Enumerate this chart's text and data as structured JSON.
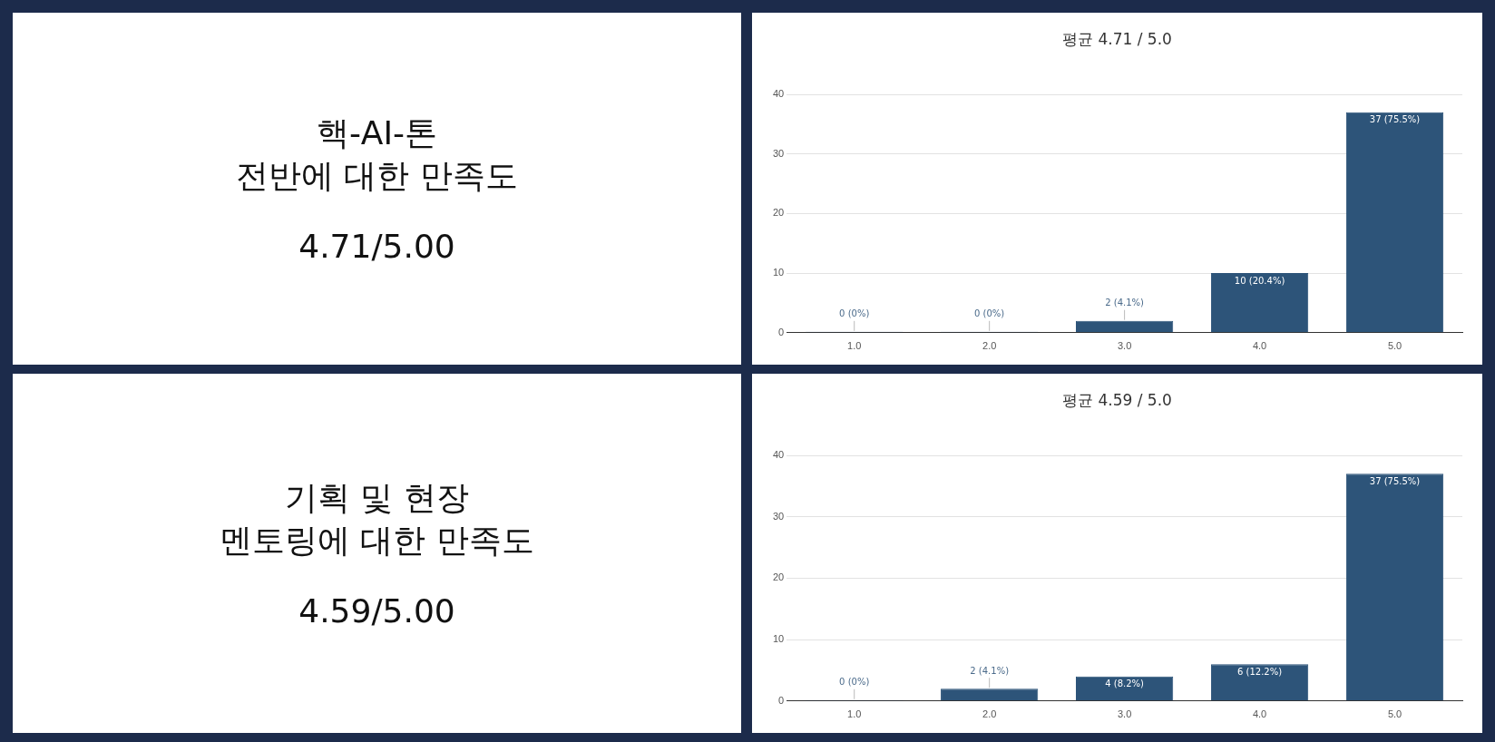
{
  "chart_data": [
    {
      "type": "other",
      "title": "핵-AI-톤\n전반에 대한 만족도",
      "subtitle": "4.71/5.00"
    },
    {
      "type": "bar",
      "title": "평균 4.71 / 5.0",
      "categories": [
        "1.0",
        "2.0",
        "3.0",
        "4.0",
        "5.0"
      ],
      "values": [
        0,
        0,
        2,
        10,
        37
      ],
      "value_labels": [
        "0 (0%)",
        "0 (0%)",
        "2 (4.1%)",
        "10 (20.4%)",
        "37 (75.5%)"
      ],
      "color": "#2d5479",
      "ylim": [
        0,
        40
      ],
      "yticks": [
        0,
        10,
        20,
        30,
        40
      ],
      "grid": "y",
      "legend": false
    },
    {
      "type": "other",
      "title": "기획 및 현장\n멘토링에 대한 만족도",
      "subtitle": "4.59/5.00"
    },
    {
      "type": "bar",
      "title": "평균 4.59 / 5.0",
      "categories": [
        "1.0",
        "2.0",
        "3.0",
        "4.0",
        "5.0"
      ],
      "values": [
        0,
        2,
        4,
        6,
        37
      ],
      "value_labels": [
        "0 (0%)",
        "2 (4.1%)",
        "4 (8.2%)",
        "6 (12.2%)",
        "37 (75.5%)"
      ],
      "color": "#2d5479",
      "ylim": [
        0,
        40
      ],
      "yticks": [
        0,
        10,
        20,
        30,
        40
      ],
      "grid": "y",
      "legend": false
    }
  ]
}
